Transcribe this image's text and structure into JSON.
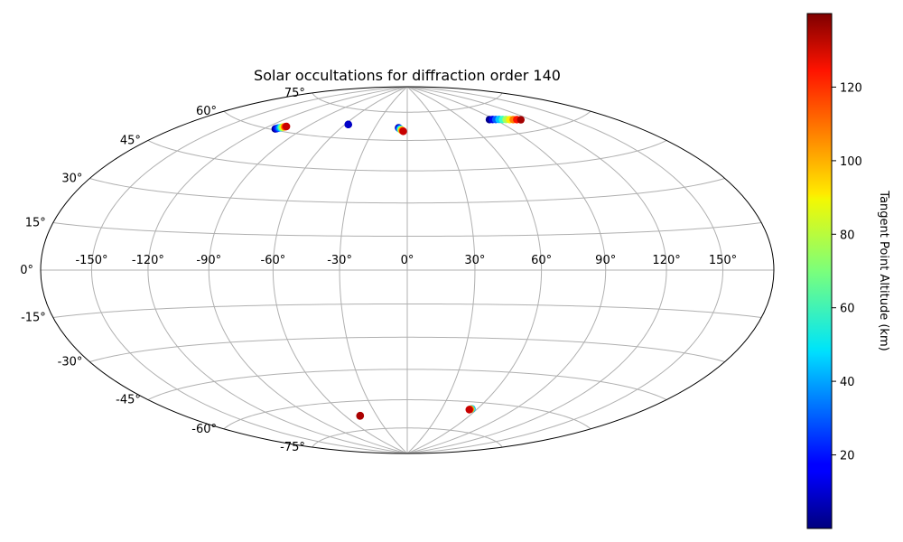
{
  "chart_data": {
    "type": "scatter",
    "projection": "aitoff/hammer (elliptical)",
    "title": "Solar occultations for diffraction order 140",
    "grid": true,
    "x_ticks": [
      "-150°",
      "-120°",
      "-90°",
      "-60°",
      "-30°",
      "0°",
      "30°",
      "60°",
      "90°",
      "120°",
      "150°"
    ],
    "x_tick_values": [
      -150,
      -120,
      -90,
      -60,
      -30,
      0,
      30,
      60,
      90,
      120,
      150
    ],
    "y_ticks": [
      "75°",
      "60°",
      "45°",
      "30°",
      "15°",
      "0°",
      "-15°",
      "-30°",
      "-45°",
      "-60°",
      "-75°"
    ],
    "y_tick_values": [
      75,
      60,
      45,
      30,
      15,
      0,
      -15,
      -30,
      -45,
      -60,
      -75
    ],
    "xlim": [
      -180,
      180
    ],
    "ylim": [
      -90,
      90
    ],
    "colorbar": {
      "label": "Tangent Point Altitude (km)",
      "ticks": [
        "20",
        "40",
        "60",
        "80",
        "100",
        "120"
      ],
      "tick_values": [
        20,
        40,
        60,
        80,
        100,
        120
      ],
      "range": [
        0,
        140
      ],
      "colormap": "jet"
    },
    "series": [
      {
        "points": [
          [
            -111.5,
            60.5,
            2
          ],
          [
            -111.0,
            60.7,
            10
          ],
          [
            -110.5,
            60.9,
            20
          ],
          [
            -110.0,
            61.1,
            30
          ],
          [
            -109.5,
            61.3,
            40
          ],
          [
            -109.0,
            61.5,
            55
          ],
          [
            -108.5,
            61.6,
            70
          ],
          [
            -108.0,
            61.8,
            85
          ],
          [
            -107.5,
            62.0,
            100
          ],
          [
            -107.0,
            62.1,
            115
          ],
          [
            -106.5,
            62.3,
            130
          ]
        ]
      },
      {
        "points": [
          [
            -57,
            67,
            2
          ],
          [
            -57,
            67,
            5
          ],
          [
            -57,
            67,
            10
          ]
        ]
      },
      {
        "points": [
          [
            -8,
            66.5,
            5
          ],
          [
            -7.5,
            66.3,
            15
          ],
          [
            -7,
            66.1,
            25
          ],
          [
            -6.5,
            65.9,
            40
          ],
          [
            -6,
            65.7,
            55
          ],
          [
            -5.5,
            65.5,
            70
          ],
          [
            -5,
            65.3,
            85
          ],
          [
            -4.5,
            65.1,
            100
          ],
          [
            -4,
            64.9,
            115
          ],
          [
            -3.5,
            64.7,
            130
          ]
        ]
      },
      {
        "points": [
          [
            85,
            68,
            2
          ],
          [
            88,
            67.8,
            15
          ],
          [
            91,
            67.6,
            30
          ],
          [
            94,
            67.4,
            45
          ],
          [
            97,
            67.1,
            60
          ],
          [
            100,
            66.8,
            75
          ],
          [
            103,
            66.5,
            90
          ],
          [
            106,
            66.2,
            105
          ],
          [
            109,
            65.9,
            120
          ],
          [
            112,
            65.5,
            135
          ]
        ]
      },
      {
        "points": [
          [
            -46,
            -67.5,
            138
          ],
          [
            -46.3,
            -67.6,
            136
          ],
          [
            -45.7,
            -67.4,
            134
          ]
        ]
      },
      {
        "points": [
          [
            55.5,
            -63.4,
            40
          ],
          [
            55,
            -63.5,
            70
          ],
          [
            54.5,
            -63.7,
            105
          ],
          [
            54,
            -63.9,
            130
          ]
        ]
      }
    ]
  }
}
